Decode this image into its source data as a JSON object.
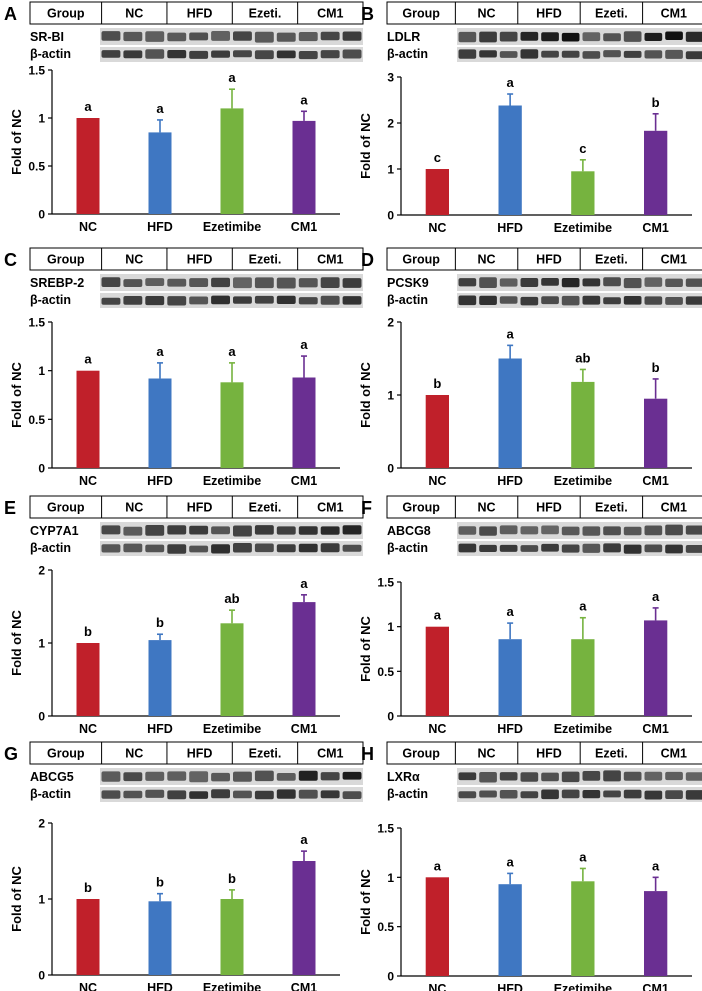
{
  "figure": {
    "group_header": [
      "Group",
      "NC",
      "HFD",
      "Ezeti.",
      "CM1"
    ],
    "categories": [
      "NC",
      "HFD",
      "Ezetimibe",
      "CM1"
    ],
    "ylabel": "Fold of NC",
    "loading_control": "β-actin",
    "colors": {
      "NC": "#c0202a",
      "HFD": "#3f77c2",
      "Ezetimibe": "#76b33f",
      "CM1": "#6a2f92"
    }
  },
  "chart_data": [
    {
      "panel": "A",
      "type": "bar",
      "protein": "SR-BI",
      "ylim": [
        0,
        1.5
      ],
      "ticks": [
        "0",
        "0.5",
        "1",
        "1.5"
      ],
      "values": [
        1.0,
        0.85,
        1.1,
        0.97
      ],
      "errors": [
        0,
        0.13,
        0.2,
        0.1
      ],
      "letters": [
        "a",
        "a",
        "a",
        "a"
      ]
    },
    {
      "panel": "B",
      "type": "bar",
      "protein": "LDLR",
      "ylim": [
        0,
        3
      ],
      "ticks": [
        "0",
        "1",
        "2",
        "3"
      ],
      "values": [
        1.0,
        2.38,
        0.95,
        1.83
      ],
      "errors": [
        0,
        0.25,
        0.25,
        0.37
      ],
      "letters": [
        "c",
        "a",
        "c",
        "b"
      ]
    },
    {
      "panel": "C",
      "type": "bar",
      "protein": "SREBP-2",
      "ylim": [
        0,
        1.5
      ],
      "ticks": [
        "0",
        "0.5",
        "1",
        "1.5"
      ],
      "values": [
        1.0,
        0.92,
        0.88,
        0.93
      ],
      "errors": [
        0,
        0.16,
        0.2,
        0.22
      ],
      "letters": [
        "a",
        "a",
        "a",
        "a"
      ]
    },
    {
      "panel": "D",
      "type": "bar",
      "protein": "PCSK9",
      "ylim": [
        0,
        2
      ],
      "ticks": [
        "0",
        "1",
        "2"
      ],
      "values": [
        1.0,
        1.5,
        1.18,
        0.95
      ],
      "errors": [
        0,
        0.18,
        0.17,
        0.27
      ],
      "letters": [
        "b",
        "a",
        "ab",
        "b"
      ]
    },
    {
      "panel": "E",
      "type": "bar",
      "protein": "CYP7A1",
      "ylim": [
        0,
        2
      ],
      "ticks": [
        "0",
        "1",
        "2"
      ],
      "values": [
        1.0,
        1.04,
        1.27,
        1.56
      ],
      "errors": [
        0,
        0.08,
        0.18,
        0.1
      ],
      "letters": [
        "b",
        "b",
        "ab",
        "a"
      ]
    },
    {
      "panel": "F",
      "type": "bar",
      "protein": "ABCG8",
      "ylim": [
        0,
        1.5
      ],
      "ticks": [
        "0",
        "0.5",
        "1",
        "1.5"
      ],
      "values": [
        1.0,
        0.86,
        0.86,
        1.07
      ],
      "errors": [
        0,
        0.18,
        0.24,
        0.14
      ],
      "letters": [
        "a",
        "a",
        "a",
        "a"
      ]
    },
    {
      "panel": "G",
      "type": "bar",
      "protein": "ABCG5",
      "ylim": [
        0,
        2
      ],
      "ticks": [
        "0",
        "1",
        "2"
      ],
      "values": [
        1.0,
        0.97,
        1.0,
        1.5
      ],
      "errors": [
        0,
        0.1,
        0.12,
        0.13
      ],
      "letters": [
        "b",
        "b",
        "b",
        "a"
      ]
    },
    {
      "panel": "H",
      "type": "bar",
      "protein": "LXRα",
      "ylim": [
        0,
        1.5
      ],
      "ticks": [
        "0",
        "0.5",
        "1",
        "1.5"
      ],
      "values": [
        1.0,
        0.93,
        0.96,
        0.86
      ],
      "errors": [
        0,
        0.11,
        0.13,
        0.14
      ],
      "letters": [
        "a",
        "a",
        "a",
        "a"
      ]
    }
  ]
}
